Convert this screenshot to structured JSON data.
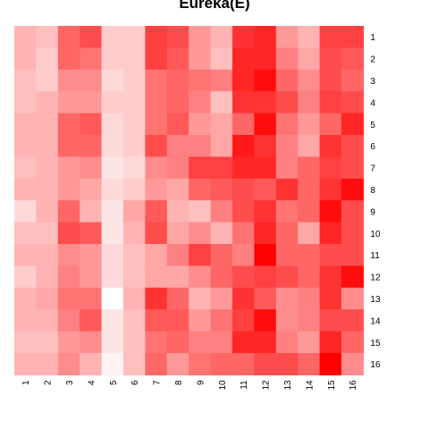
{
  "chart_data": {
    "type": "heatmap",
    "title": "Eureka(E)",
    "x_tick_labels": [
      "1",
      "2",
      "3",
      "4",
      "5",
      "6",
      "7",
      "8",
      "9",
      "10",
      "11",
      "12",
      "13",
      "14",
      "15",
      "16"
    ],
    "y_tick_labels": [
      "1",
      "2",
      "3",
      "4",
      "5",
      "6",
      "7",
      "8",
      "9",
      "10",
      "11",
      "12",
      "13",
      "14",
      "15",
      "16"
    ],
    "color_scale": {
      "low": "#ffffff",
      "high": "#ff0000"
    },
    "value_range": [
      0,
      1
    ],
    "grid": false,
    "values": [
      [
        0.3,
        0.25,
        0.6,
        0.7,
        0.2,
        0.2,
        0.75,
        0.7,
        0.4,
        0.3,
        0.8,
        0.85,
        0.4,
        0.3,
        0.75,
        0.75
      ],
      [
        0.3,
        0.2,
        0.6,
        0.55,
        0.2,
        0.2,
        0.75,
        0.65,
        0.4,
        0.25,
        0.85,
        0.85,
        0.5,
        0.35,
        0.7,
        0.65
      ],
      [
        0.25,
        0.2,
        0.45,
        0.45,
        0.15,
        0.2,
        0.55,
        0.6,
        0.55,
        0.5,
        0.85,
        0.95,
        0.6,
        0.45,
        0.7,
        0.6
      ],
      [
        0.25,
        0.3,
        0.4,
        0.4,
        0.2,
        0.2,
        0.55,
        0.6,
        0.5,
        0.25,
        0.8,
        0.8,
        0.7,
        0.5,
        0.75,
        0.7
      ],
      [
        0.3,
        0.3,
        0.6,
        0.65,
        0.15,
        0.2,
        0.55,
        0.65,
        0.4,
        0.35,
        0.6,
        0.95,
        0.55,
        0.4,
        0.6,
        0.85
      ],
      [
        0.3,
        0.3,
        0.6,
        0.6,
        0.15,
        0.2,
        0.7,
        0.5,
        0.5,
        0.35,
        0.9,
        0.8,
        0.5,
        0.35,
        0.8,
        0.7
      ],
      [
        0.25,
        0.3,
        0.4,
        0.45,
        0.1,
        0.15,
        0.45,
        0.5,
        0.75,
        0.75,
        0.85,
        0.85,
        0.5,
        0.6,
        0.75,
        0.7
      ],
      [
        0.3,
        0.3,
        0.4,
        0.35,
        0.15,
        0.2,
        0.4,
        0.35,
        0.6,
        0.65,
        0.7,
        0.65,
        0.8,
        0.6,
        0.8,
        0.95
      ],
      [
        0.15,
        0.3,
        0.6,
        0.3,
        0.1,
        0.35,
        0.65,
        0.3,
        0.25,
        0.5,
        0.7,
        0.8,
        0.55,
        0.6,
        0.95,
        0.7
      ],
      [
        0.25,
        0.25,
        0.7,
        0.65,
        0.1,
        0.3,
        0.7,
        0.35,
        0.45,
        0.3,
        0.55,
        0.85,
        0.6,
        0.35,
        0.85,
        0.7
      ],
      [
        0.3,
        0.3,
        0.45,
        0.4,
        0.15,
        0.25,
        0.35,
        0.5,
        0.75,
        0.6,
        0.5,
        1.0,
        0.6,
        0.6,
        0.7,
        0.7
      ],
      [
        0.2,
        0.3,
        0.5,
        0.4,
        0.15,
        0.25,
        0.35,
        0.35,
        0.45,
        0.6,
        0.7,
        0.75,
        0.7,
        0.6,
        0.8,
        0.95
      ],
      [
        0.3,
        0.35,
        0.55,
        0.55,
        0.0,
        0.3,
        0.8,
        0.6,
        0.3,
        0.4,
        0.8,
        0.65,
        0.45,
        0.5,
        0.8,
        0.45
      ],
      [
        0.3,
        0.3,
        0.5,
        0.65,
        0.1,
        0.25,
        0.65,
        0.65,
        0.4,
        0.55,
        0.75,
        0.95,
        0.45,
        0.5,
        0.7,
        0.7
      ],
      [
        0.25,
        0.25,
        0.4,
        0.45,
        0.1,
        0.25,
        0.55,
        0.6,
        0.5,
        0.5,
        0.85,
        0.85,
        0.5,
        0.4,
        0.85,
        0.6
      ],
      [
        0.3,
        0.3,
        0.45,
        0.3,
        0.05,
        0.25,
        0.6,
        0.4,
        0.55,
        0.6,
        0.6,
        0.7,
        0.7,
        0.6,
        1.0,
        0.45
      ]
    ]
  }
}
